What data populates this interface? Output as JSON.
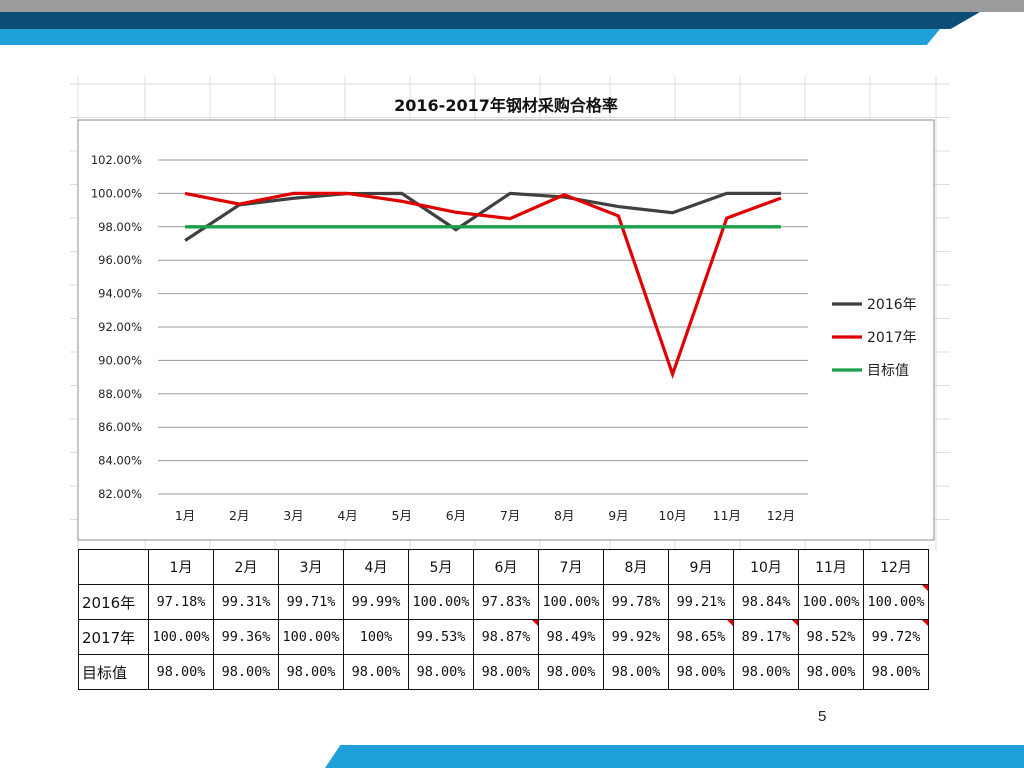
{
  "page_number": "5",
  "colors": {
    "band_gray": "#9b9b9b",
    "band_navy": "#0b4f78",
    "band_blue": "#1fa0d8",
    "series_2016": "#404040",
    "series_2017": "#e00000",
    "series_target": "#1aa04a"
  },
  "chart_data": {
    "type": "line",
    "title": "2016-2017年钢材采购合格率",
    "categories": [
      "1月",
      "2月",
      "3月",
      "4月",
      "5月",
      "6月",
      "7月",
      "8月",
      "9月",
      "10月",
      "11月",
      "12月"
    ],
    "y_ticks": [
      "82.00%",
      "84.00%",
      "86.00%",
      "88.00%",
      "90.00%",
      "92.00%",
      "94.00%",
      "96.00%",
      "98.00%",
      "100.00%",
      "102.00%"
    ],
    "ylim": [
      82,
      102
    ],
    "grid": true,
    "legend_position": "right",
    "series": [
      {
        "name": "2016年",
        "color": "#404040",
        "values": [
          97.18,
          99.31,
          99.71,
          99.99,
          100.0,
          97.83,
          100.0,
          99.78,
          99.21,
          98.84,
          100.0,
          100.0
        ]
      },
      {
        "name": "2017年",
        "color": "#e00000",
        "values": [
          100.0,
          99.36,
          100.0,
          100.0,
          99.53,
          98.87,
          98.49,
          99.92,
          98.65,
          89.17,
          98.52,
          99.72
        ]
      },
      {
        "name": "目标值",
        "color": "#1aa04a",
        "values": [
          98.0,
          98.0,
          98.0,
          98.0,
          98.0,
          98.0,
          98.0,
          98.0,
          98.0,
          98.0,
          98.0,
          98.0
        ]
      }
    ]
  },
  "table": {
    "header": [
      "1月",
      "2月",
      "3月",
      "4月",
      "5月",
      "6月",
      "7月",
      "8月",
      "9月",
      "10月",
      "11月",
      "12月"
    ],
    "rows": [
      {
        "label": "2016年",
        "cells": [
          "97.18%",
          "99.31%",
          "99.71%",
          "99.99%",
          "100.00%",
          "97.83%",
          "100.00%",
          "99.78%",
          "99.21%",
          "98.84%",
          "100.00%",
          "100.00%"
        ]
      },
      {
        "label": "2017年",
        "cells": [
          "100.00%",
          "99.36%",
          "100.00%",
          "100%",
          "99.53%",
          "98.87%",
          "98.49%",
          "99.92%",
          "98.65%",
          "89.17%",
          "98.52%",
          "99.72%"
        ]
      },
      {
        "label": "目标值",
        "cells": [
          "98.00%",
          "98.00%",
          "98.00%",
          "98.00%",
          "98.00%",
          "98.00%",
          "98.00%",
          "98.00%",
          "98.00%",
          "98.00%",
          "98.00%",
          "98.00%"
        ]
      }
    ]
  }
}
